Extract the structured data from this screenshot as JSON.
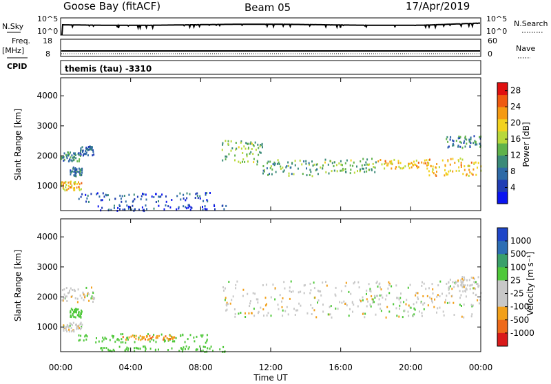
{
  "header": {
    "station": "Goose Bay (fitACF)",
    "beam": "Beam 05",
    "date": "17/Apr/2019"
  },
  "strips": {
    "nsky_label": "N.Sky",
    "nsky_top": "10^5",
    "nsky_bottom": "10^0",
    "nsearch_label": "N.Search",
    "nsearch_top": "10^5",
    "nsearch_bottom": "10^0",
    "freq_label": "Freq.",
    "freq_unit": "[MHz]",
    "freq_top": "18",
    "freq_bottom": "8",
    "nave_label": "Nave",
    "nave_top": "60",
    "nave_bottom": "0",
    "cpid_label": "CPID",
    "cpid_text": "themis (tau) -3310"
  },
  "panels": {
    "slant_label": "Slant Range [km]",
    "power_label": "Power [dB]",
    "velocity_label": "Velocity [m s⁻¹]",
    "xlabel": "Time UT"
  },
  "colors": {
    "power_scale": [
      "#0a14f0",
      "#1f3cb4",
      "#2e6aa6",
      "#3a8a78",
      "#5fb24a",
      "#b8d83a",
      "#f2d21e",
      "#f59a12",
      "#ef5a10",
      "#e01010"
    ],
    "velocity_scale": [
      "#d91a1a",
      "#ee6a1a",
      "#f2a01a",
      "#c8c8c8",
      "#c8c8c8",
      "#4fc83a",
      "#3aa06a",
      "#2d6eb4",
      "#1f46c8"
    ],
    "gray_scatter": "#c8c8c8"
  },
  "chart_data": [
    {
      "type": "heatmap",
      "title": "Power",
      "xlabel": "",
      "ylabel": "Slant Range [km]",
      "x_ticks": [
        "00:00",
        "04:00",
        "08:00",
        "12:00",
        "16:00",
        "20:00",
        "00:00"
      ],
      "xlim": [
        0,
        24
      ],
      "y_ticks": [
        1000,
        2000,
        3000,
        4000
      ],
      "ylim": [
        180,
        4600
      ],
      "colorbar_label": "Power [dB]",
      "colorbar_ticks": [
        4,
        8,
        12,
        16,
        20,
        24,
        28
      ],
      "colorbar_range": [
        0,
        30
      ],
      "regions": [
        {
          "t": [
            0.0,
            1.1
          ],
          "range": [
            1850,
            2150
          ],
          "value": 10
        },
        {
          "t": [
            1.1,
            1.9
          ],
          "range": [
            2050,
            2350
          ],
          "value": 8
        },
        {
          "t": [
            0.0,
            1.2
          ],
          "range": [
            880,
            1180
          ],
          "value": 20
        },
        {
          "t": [
            0.5,
            1.2
          ],
          "range": [
            1350,
            1650
          ],
          "value": 8
        },
        {
          "t": [
            1.0,
            8.5
          ],
          "range": [
            500,
            800
          ],
          "value": 6
        },
        {
          "t": [
            2.0,
            9.5
          ],
          "range": [
            200,
            400
          ],
          "value": 5
        },
        {
          "t": [
            9.2,
            11.5
          ],
          "range": [
            1750,
            2550
          ],
          "value": 14
        },
        {
          "t": [
            11.5,
            15.0
          ],
          "range": [
            1350,
            1900
          ],
          "value": 12
        },
        {
          "t": [
            15.0,
            18.0
          ],
          "range": [
            1450,
            1950
          ],
          "value": 14
        },
        {
          "t": [
            18.0,
            21.0
          ],
          "range": [
            1600,
            1900
          ],
          "value": 20
        },
        {
          "t": [
            21.0,
            24.0
          ],
          "range": [
            1350,
            1950
          ],
          "value": 20
        },
        {
          "t": [
            22.0,
            24.0
          ],
          "range": [
            2300,
            2700
          ],
          "value": 10
        }
      ]
    },
    {
      "type": "heatmap",
      "title": "Velocity",
      "xlabel": "Time UT",
      "ylabel": "Slant Range [km]",
      "x_ticks": [
        "00:00",
        "04:00",
        "08:00",
        "12:00",
        "16:00",
        "20:00",
        "00:00"
      ],
      "xlim": [
        0,
        24
      ],
      "y_ticks": [
        1000,
        2000,
        3000,
        4000
      ],
      "ylim": [
        180,
        4600
      ],
      "colorbar_label": "Velocity [m s⁻¹]",
      "colorbar_ticks": [
        1000,
        500,
        100,
        25,
        -25,
        -100,
        -500,
        -1000
      ],
      "regions": [
        {
          "t": [
            0.0,
            1.9
          ],
          "range": [
            1850,
            2350
          ],
          "value": 0
        },
        {
          "t": [
            0.0,
            1.2
          ],
          "range": [
            880,
            1180
          ],
          "value": 0
        },
        {
          "t": [
            0.5,
            1.2
          ],
          "range": [
            1350,
            1650
          ],
          "value": 60
        },
        {
          "t": [
            1.0,
            8.5
          ],
          "range": [
            500,
            800
          ],
          "value": 60
        },
        {
          "t": [
            3.5,
            6.5
          ],
          "range": [
            600,
            750
          ],
          "value": -80
        },
        {
          "t": [
            2.0,
            9.5
          ],
          "range": [
            200,
            400
          ],
          "value": 60
        },
        {
          "t": [
            9.2,
            24.0
          ],
          "range": [
            1350,
            2550
          ],
          "value": 0
        },
        {
          "t": [
            22.0,
            24.0
          ],
          "range": [
            2300,
            2700
          ],
          "value": 0
        }
      ]
    }
  ]
}
